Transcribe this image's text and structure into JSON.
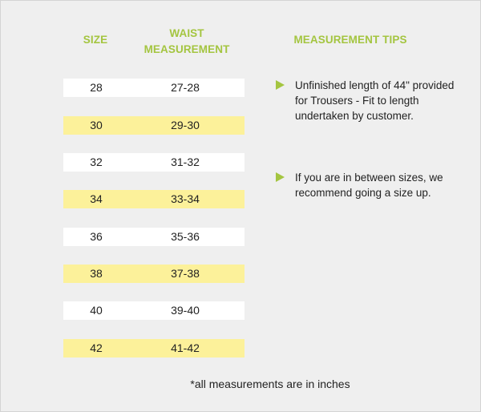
{
  "headers": {
    "size": "SIZE",
    "waist": "WAIST MEASUREMENT",
    "tips": "MEASUREMENT TIPS"
  },
  "rows": [
    {
      "size": "28",
      "waist": "27-28"
    },
    {
      "size": "30",
      "waist": "29-30"
    },
    {
      "size": "32",
      "waist": "31-32"
    },
    {
      "size": "34",
      "waist": "33-34"
    },
    {
      "size": "36",
      "waist": "35-36"
    },
    {
      "size": "38",
      "waist": "37-38"
    },
    {
      "size": "40",
      "waist": "39-40"
    },
    {
      "size": "42",
      "waist": "41-42"
    }
  ],
  "tips": [
    "Unfinished length of 44\" provided for Trousers - Fit to length undertaken by customer.",
    "If you are in between sizes, we recommend going a size up."
  ],
  "footnote": "*all measurements are in inches",
  "colors": {
    "accent": "#a4c540",
    "highlight_row": "#fcf19a",
    "plain_row": "#ffffff",
    "background": "#efefef"
  },
  "icons": {
    "tip_bullet": "triangle-right-icon"
  }
}
